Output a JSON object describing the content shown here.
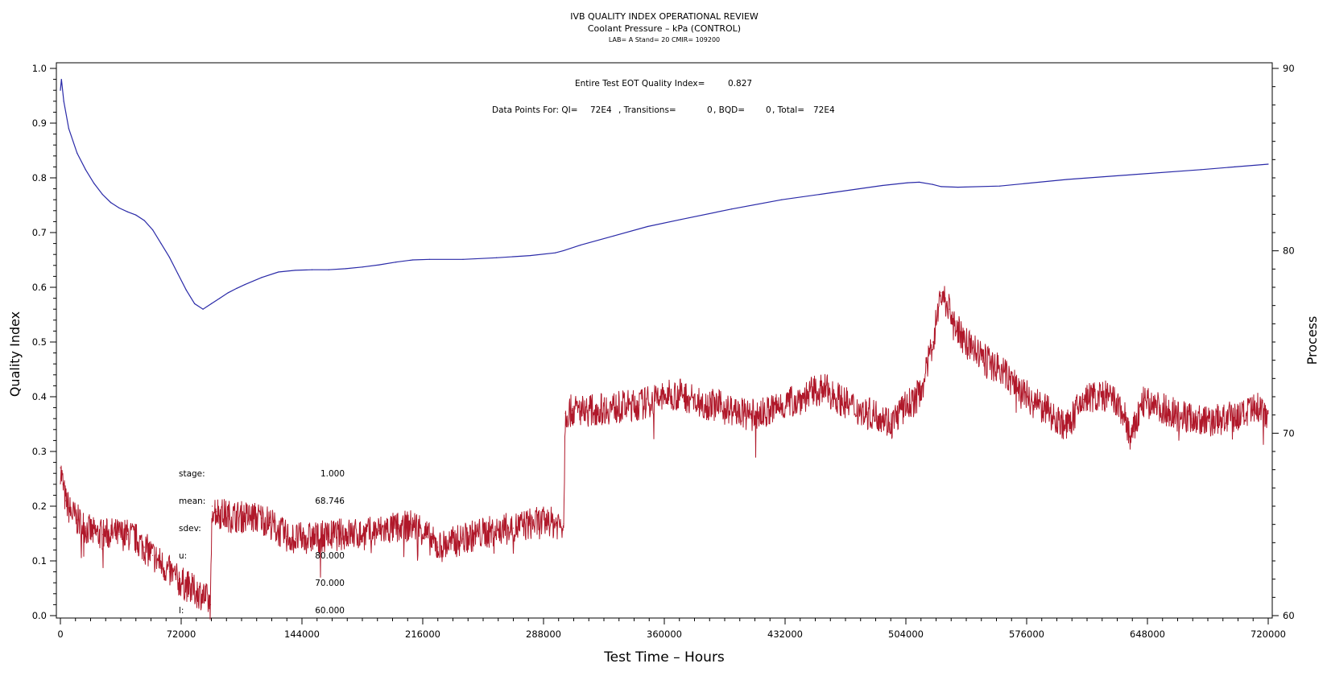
{
  "chart_data": {
    "type": "line",
    "title": "IVB QUALITY INDEX OPERATIONAL REVIEW",
    "subtitle": "Coolant Pressure – kPa (CONTROL)",
    "subtitle2": "LAB= A Stand= 20 CMIR= 109200",
    "xlabel": "Test Time – Hours",
    "ylabel": "Quality Index",
    "y2label": "Process",
    "xlim": [
      0,
      720000
    ],
    "ylim": [
      0.0,
      1.0
    ],
    "y2lim": [
      60,
      90
    ],
    "x_ticks": [
      "0",
      "72000",
      "144000",
      "216000",
      "288000",
      "360000",
      "432000",
      "504000",
      "576000",
      "648000",
      "720000"
    ],
    "y_ticks": [
      "0.0",
      "0.1",
      "0.2",
      "0.3",
      "0.4",
      "0.5",
      "0.6",
      "0.7",
      "0.8",
      "0.9",
      "1.0"
    ],
    "y2_ticks": [
      "60",
      "70",
      "80",
      "90"
    ],
    "annotations": {
      "eot_label": "Entire Test EOT Quality Index=",
      "eot_value": "0.827",
      "points_label": "Data Points For: QI=",
      "points_qi": "72E4",
      "transitions_label": ", Transitions=",
      "transitions_value": "0",
      "bqd_label": ", BQD=",
      "bqd_value": "0",
      "total_label": ", Total=",
      "total_value": "72E4"
    },
    "stats": [
      {
        "label": "stage:",
        "value": "1.000"
      },
      {
        "label": "mean:",
        "value": "68.746"
      },
      {
        "label": "sdev:",
        "value": ""
      },
      {
        "label": "u:",
        "value": "80.000"
      },
      {
        "label": "",
        "value": "70.000"
      },
      {
        "label": "l:",
        "value": "60.000"
      }
    ],
    "series": [
      {
        "color": "#2a2aa8",
        "axis": "left",
        "x": [
          0,
          600,
          2000,
          5000,
          10000,
          15000,
          20000,
          25000,
          30000,
          35000,
          40000,
          45000,
          50000,
          55000,
          60000,
          65000,
          70000,
          75000,
          80000,
          85000,
          90000,
          95000,
          100000,
          105000,
          110000,
          120000,
          130000,
          140000,
          150000,
          160000,
          170000,
          180000,
          190000,
          200000,
          210000,
          220000,
          240000,
          260000,
          280000,
          295000,
          300000,
          310000,
          330000,
          350000,
          370000,
          400000,
          430000,
          460000,
          490000,
          505000,
          512000,
          520000,
          525000,
          535000,
          560000,
          600000,
          640000,
          680000,
          700000,
          720000
        ],
        "y": [
          0.96,
          0.98,
          0.94,
          0.89,
          0.845,
          0.815,
          0.79,
          0.77,
          0.755,
          0.745,
          0.738,
          0.732,
          0.722,
          0.705,
          0.68,
          0.655,
          0.625,
          0.595,
          0.57,
          0.56,
          0.57,
          0.58,
          0.59,
          0.598,
          0.605,
          0.618,
          0.628,
          0.631,
          0.632,
          0.632,
          0.634,
          0.637,
          0.641,
          0.646,
          0.65,
          0.651,
          0.651,
          0.654,
          0.658,
          0.663,
          0.667,
          0.677,
          0.694,
          0.711,
          0.724,
          0.743,
          0.76,
          0.773,
          0.786,
          0.791,
          0.792,
          0.788,
          0.784,
          0.783,
          0.785,
          0.797,
          0.806,
          0.815,
          0.82,
          0.825
        ]
      },
      {
        "color": "#b0182a",
        "axis": "left",
        "x": [
          0,
          1500,
          3000,
          6000,
          10000,
          15000,
          20000,
          25000,
          30000,
          35000,
          40000,
          45000,
          50000,
          55000,
          60000,
          65000,
          70000,
          75000,
          80000,
          85000,
          89500,
          90500,
          93000,
          100000,
          110000,
          120000,
          125000,
          130000,
          135000,
          140000,
          145000,
          150000,
          160000,
          170000,
          180000,
          190000,
          200000,
          210000,
          215000,
          220000,
          225000,
          230000,
          240000,
          250000,
          260000,
          270000,
          280000,
          290000,
          300000,
          301000,
          305000,
          315000,
          330000,
          345000,
          360000,
          370000,
          380000,
          390000,
          400000,
          410000,
          420000,
          430000,
          440000,
          450000,
          455000,
          460000,
          470000,
          480000,
          490000,
          495000,
          500000,
          505000,
          510000,
          515000,
          520000,
          525000,
          530000,
          535000,
          540000,
          550000,
          560000,
          570000,
          580000,
          590000,
          600000,
          610000,
          615000,
          625000,
          630000,
          635000,
          638000,
          645000,
          655000,
          665000,
          675000,
          685000,
          695000,
          705000,
          715000,
          720000
        ],
        "y": [
          0.27,
          0.24,
          0.21,
          0.19,
          0.175,
          0.16,
          0.15,
          0.148,
          0.15,
          0.148,
          0.148,
          0.14,
          0.125,
          0.11,
          0.095,
          0.08,
          0.065,
          0.055,
          0.045,
          0.038,
          0.02,
          0.2,
          0.19,
          0.182,
          0.18,
          0.178,
          0.17,
          0.155,
          0.145,
          0.14,
          0.142,
          0.142,
          0.145,
          0.15,
          0.148,
          0.155,
          0.16,
          0.165,
          0.16,
          0.14,
          0.125,
          0.13,
          0.14,
          0.15,
          0.155,
          0.16,
          0.168,
          0.17,
          0.168,
          0.37,
          0.375,
          0.375,
          0.38,
          0.385,
          0.4,
          0.405,
          0.39,
          0.385,
          0.375,
          0.365,
          0.37,
          0.385,
          0.395,
          0.41,
          0.415,
          0.405,
          0.385,
          0.37,
          0.365,
          0.35,
          0.37,
          0.385,
          0.395,
          0.43,
          0.5,
          0.59,
          0.56,
          0.52,
          0.5,
          0.47,
          0.45,
          0.42,
          0.39,
          0.37,
          0.345,
          0.395,
          0.4,
          0.4,
          0.385,
          0.36,
          0.32,
          0.39,
          0.38,
          0.37,
          0.36,
          0.355,
          0.36,
          0.365,
          0.38,
          0.37
        ]
      }
    ]
  }
}
